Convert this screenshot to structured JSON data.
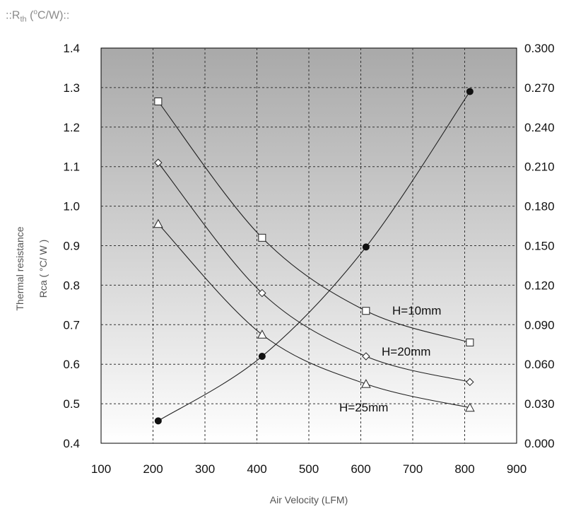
{
  "header": {
    "prefix": "::R",
    "sub": "th",
    "unit": " (",
    "sup": "o",
    "rest": "C/W)::"
  },
  "chart_data": {
    "type": "line",
    "xlabel": "Air Velocity (LFM)",
    "ylabel_line1": "Thermal resistance",
    "ylabel_line2": "Rca ( °C/ W )",
    "xlim": [
      100,
      900
    ],
    "ylim": [
      0.4,
      1.4
    ],
    "y2lim": [
      0.0,
      0.3
    ],
    "x_ticks": [
      "100",
      "200",
      "300",
      "400",
      "500",
      "600",
      "700",
      "800",
      "900"
    ],
    "y_ticks": [
      "0.4",
      "0.5",
      "0.6",
      "0.7",
      "0.8",
      "0.9",
      "1.0",
      "1.1",
      "1.2",
      "1.3",
      "1.4"
    ],
    "y2_ticks": [
      "0.000",
      "0.030",
      "0.060",
      "0.090",
      "0.120",
      "0.150",
      "0.180",
      "0.210",
      "0.240",
      "0.270",
      "0.300"
    ],
    "grid": true,
    "series": [
      {
        "name": "H=10mm",
        "marker": "square",
        "axis": "left",
        "x": [
          210,
          410,
          610,
          810
        ],
        "values": [
          1.265,
          0.92,
          0.735,
          0.655
        ]
      },
      {
        "name": "H=20mm",
        "marker": "diamond",
        "axis": "left",
        "x": [
          210,
          410,
          610,
          810
        ],
        "values": [
          1.11,
          0.78,
          0.62,
          0.555
        ]
      },
      {
        "name": "H=25mm",
        "marker": "triangle",
        "axis": "left",
        "x": [
          210,
          410,
          610,
          810
        ],
        "values": [
          0.955,
          0.675,
          0.55,
          0.49
        ]
      },
      {
        "marker": "circle-filled",
        "axis": "right",
        "x": [
          210,
          410,
          610,
          810
        ],
        "values": [
          0.017,
          0.066,
          0.149,
          0.267
        ]
      }
    ]
  }
}
